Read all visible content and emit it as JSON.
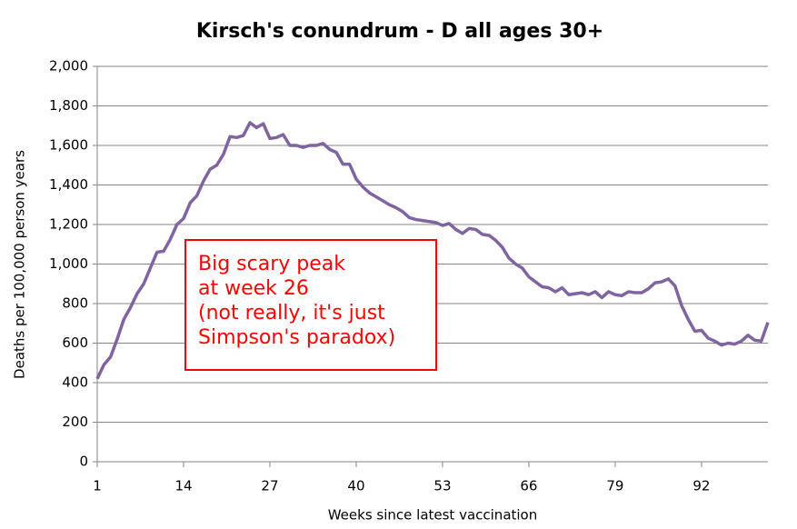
{
  "chart_data": {
    "type": "line",
    "title": "Kirsch's conundrum - D all  ages 30+",
    "xlabel": "Weeks since latest vaccination",
    "ylabel": "Deaths per 100,000 person years",
    "x": [
      1,
      2,
      3,
      4,
      5,
      6,
      7,
      8,
      9,
      10,
      11,
      12,
      13,
      14,
      15,
      16,
      17,
      18,
      19,
      20,
      21,
      22,
      23,
      24,
      25,
      26,
      27,
      28,
      29,
      30,
      31,
      32,
      33,
      34,
      35,
      36,
      37,
      38,
      39,
      40,
      41,
      42,
      43,
      44,
      45,
      46,
      47,
      48,
      49,
      50,
      51,
      52,
      53,
      54,
      55,
      56,
      57,
      58,
      59,
      60,
      61,
      62,
      63,
      64,
      65,
      66,
      67,
      68,
      69,
      70,
      71,
      72,
      73,
      74,
      75,
      76,
      77,
      78,
      79,
      80,
      81,
      82,
      83,
      84,
      85,
      86,
      87,
      88,
      89,
      90,
      91,
      92,
      93,
      94,
      95,
      96,
      97,
      98,
      99,
      100,
      101,
      102
    ],
    "series": [
      {
        "name": "D all ages 30+",
        "color": "#8064a2",
        "values": [
          420,
          490,
          530,
          620,
          720,
          780,
          850,
          900,
          980,
          1060,
          1065,
          1125,
          1200,
          1230,
          1310,
          1345,
          1420,
          1480,
          1500,
          1555,
          1645,
          1640,
          1650,
          1715,
          1690,
          1710,
          1635,
          1640,
          1655,
          1600,
          1600,
          1590,
          1600,
          1600,
          1610,
          1580,
          1565,
          1505,
          1505,
          1430,
          1390,
          1360,
          1340,
          1320,
          1300,
          1285,
          1265,
          1235,
          1225,
          1220,
          1215,
          1210,
          1195,
          1205,
          1175,
          1155,
          1180,
          1175,
          1150,
          1145,
          1120,
          1085,
          1030,
          1000,
          980,
          935,
          910,
          885,
          880,
          860,
          880,
          845,
          850,
          855,
          845,
          860,
          830,
          860,
          845,
          840,
          860,
          855,
          855,
          875,
          905,
          910,
          925,
          890,
          790,
          720,
          660,
          665,
          625,
          610,
          590,
          600,
          595,
          610,
          640,
          615,
          610,
          705
        ]
      }
    ],
    "xlim": [
      1,
      102
    ],
    "xticks": [
      1,
      14,
      27,
      40,
      53,
      66,
      79,
      92
    ],
    "ylim": [
      0,
      2000
    ],
    "yticks": [
      0,
      200,
      400,
      600,
      800,
      {
        "value": 1000,
        "label": "1,000"
      },
      {
        "value": 1200,
        "label": "1,200"
      },
      {
        "value": 1400,
        "label": "1,400"
      },
      {
        "value": 1600,
        "label": "1,600"
      },
      {
        "value": 1800,
        "label": "1,800"
      },
      {
        "value": 2000,
        "label": "2,000"
      }
    ],
    "grid": true,
    "annotation": {
      "color": "#ff0000",
      "lines": [
        "Big scary peak",
        "at week 26",
        "(not really, it's just",
        "Simpson's paradox)"
      ]
    }
  }
}
